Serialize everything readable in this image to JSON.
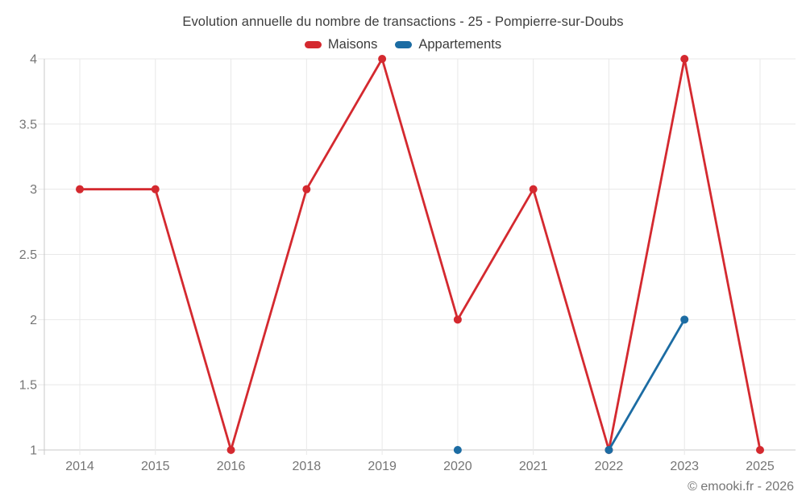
{
  "header": {
    "title": "Evolution annuelle du nombre de transactions - 25 - Pompierre-sur-Doubs"
  },
  "legend": {
    "items": [
      {
        "label": "Maisons",
        "color": "#d4292f"
      },
      {
        "label": "Appartements",
        "color": "#1c6ca3"
      }
    ]
  },
  "footer": {
    "copyright": "© emooki.fr - 2026"
  },
  "colors": {
    "grid_minor": "#e8e8e8",
    "grid_axis": "#c9c9c9",
    "axis_label": "#757575"
  },
  "chart_data": {
    "type": "line",
    "title": "Evolution annuelle du nombre de transactions - 25 - Pompierre-sur-Doubs",
    "categories": [
      "2014",
      "2015",
      "2016",
      "2018",
      "2019",
      "2020",
      "2021",
      "2022",
      "2023",
      "2025"
    ],
    "series": [
      {
        "name": "Maisons",
        "color": "#d4292f",
        "values": [
          3,
          3,
          1,
          3,
          4,
          2,
          3,
          1,
          4,
          1
        ]
      },
      {
        "name": "Appartements",
        "color": "#1c6ca3",
        "values": [
          null,
          null,
          null,
          null,
          null,
          1,
          null,
          1,
          2,
          null
        ]
      }
    ],
    "xlabel": "",
    "ylabel": "",
    "ylim": [
      1,
      4
    ],
    "yticks": [
      1,
      1.5,
      2,
      2.5,
      3,
      3.5,
      4
    ],
    "grid": true,
    "legend_position": "top"
  }
}
